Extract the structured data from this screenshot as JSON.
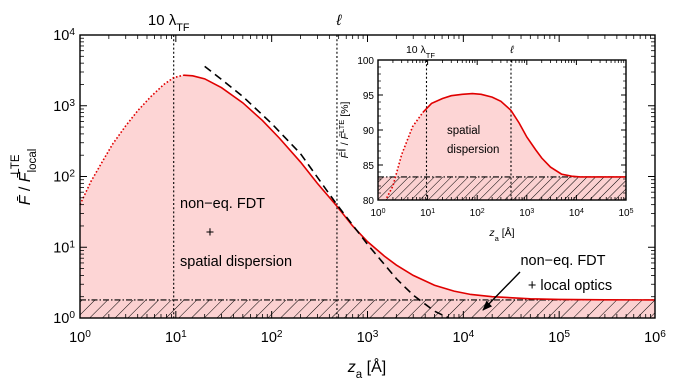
{
  "chart_data": [
    {
      "type": "line",
      "xlabel": "z_a [Å]",
      "ylabel": "F̄ / F̄_local^LTE",
      "x_scale": "log",
      "y_scale": "log",
      "xlim": [
        1,
        1000000
      ],
      "ylim": [
        1,
        10000
      ],
      "x_ticks": [
        "10^0",
        "10^1",
        "10^2",
        "10^3",
        "10^4",
        "10^5",
        "10^6"
      ],
      "y_ticks": [
        "10^0",
        "10^1",
        "10^2",
        "10^3",
        "10^4"
      ],
      "vlines": [
        {
          "x": 9.5,
          "label": "10 λ_TF"
        },
        {
          "x": 480,
          "label": "ℓ"
        }
      ],
      "series": [
        {
          "style": "red solid (dotted at small z_a), filled pink",
          "x": [
            1,
            1.3,
            1.7,
            2.2,
            3,
            4,
            5.5,
            7.5,
            9.5,
            12,
            15,
            20,
            30,
            50,
            80,
            120,
            200,
            300,
            480,
            700,
            1000,
            1500,
            2000,
            3000,
            5000,
            8000,
            12000,
            20000,
            50000,
            100000,
            300000,
            1000000
          ],
          "y": [
            40,
            85,
            160,
            290,
            520,
            850,
            1350,
            2000,
            2500,
            2700,
            2650,
            2400,
            1800,
            1100,
            620,
            350,
            160,
            80,
            38,
            20,
            12,
            7.5,
            5.6,
            4,
            2.9,
            2.4,
            2.15,
            2,
            1.87,
            1.83,
            1.81,
            1.8
          ]
        },
        {
          "style": "black dashed",
          "x": [
            20,
            30,
            50,
            100,
            200,
            480,
            1000,
            2000,
            3000,
            5000,
            7000
          ],
          "y": [
            3600,
            2350,
            1350,
            560,
            210,
            40,
            11,
            3.6,
            2.1,
            1.25,
            1
          ]
        },
        {
          "style": "black dash-dot baseline, hatched region",
          "x": [
            1,
            1000000
          ],
          "y": [
            1.8,
            1.8
          ]
        }
      ],
      "annotations": [
        "non−eq. FDT",
        "+",
        "spatial dispersion",
        "non−eq. FDT",
        "+ local optics"
      ]
    },
    {
      "type": "line",
      "xlabel": "z_a [Å]",
      "ylabel": "F̄^∥ / F̄^LTE [%]",
      "x_scale": "log",
      "xlim": [
        1,
        100000
      ],
      "ylim": [
        80,
        100
      ],
      "x_ticks": [
        "10^0",
        "10^1",
        "10^2",
        "10^3",
        "10^4",
        "10^5"
      ],
      "y_ticks": [
        "80",
        "85",
        "90",
        "95",
        "100"
      ],
      "vlines": [
        {
          "x": 9.5,
          "label": "10 λ_TF"
        },
        {
          "x": 480,
          "label": "ℓ"
        }
      ],
      "series": [
        {
          "style": "red solid (dotted at small z_a), filled pink",
          "x": [
            1.5,
            2,
            3,
            5,
            8,
            12,
            20,
            30,
            50,
            80,
            120,
            200,
            300,
            480,
            700,
            1000,
            1500,
            2000,
            3000,
            5000,
            8000,
            12000,
            20000,
            50000,
            100000
          ],
          "y": [
            80.3,
            82,
            86.5,
            90.5,
            92.5,
            93.8,
            94.5,
            94.9,
            95.1,
            95.2,
            95.1,
            94.7,
            94.1,
            92.8,
            91,
            89,
            87.2,
            86,
            84.7,
            83.7,
            83.4,
            83.3,
            83.3,
            83.3,
            83.3
          ]
        },
        {
          "style": "black dash-dot baseline, hatched region",
          "x": [
            1,
            100000
          ],
          "y": [
            83.3,
            83.3
          ]
        }
      ],
      "annotations": [
        "spatial",
        "dispersion"
      ]
    }
  ]
}
